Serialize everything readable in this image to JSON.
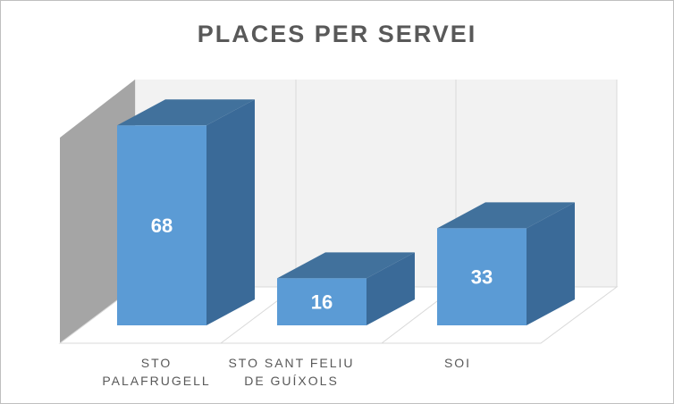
{
  "chart_data": {
    "type": "bar",
    "style": "3d-column",
    "title": "PLACES PER SERVEI",
    "categories": [
      [
        "STO",
        "PALAFRUGELL"
      ],
      [
        "STO SANT FELIU",
        "DE GUÍXOLS"
      ],
      [
        "SOI"
      ]
    ],
    "values": [
      68,
      16,
      33
    ],
    "ylim": [
      0,
      80
    ],
    "grid": true,
    "legend": "none",
    "colors": {
      "front": "#5b9bd5",
      "top": "#41719c",
      "side": "#3a6a98",
      "back_wall": "#f2f2f2",
      "side_wall": "#a5a5a5",
      "gridline": "#d9d9d9"
    }
  }
}
